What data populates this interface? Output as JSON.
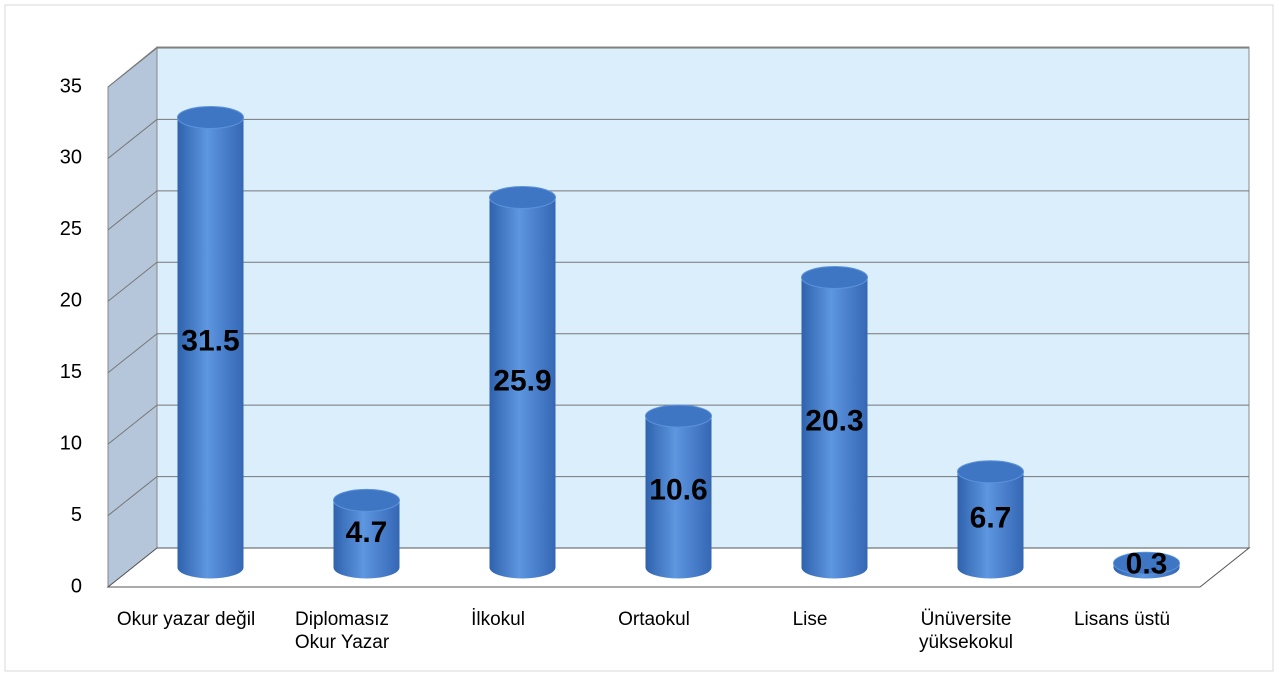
{
  "chart_data": {
    "type": "cylinder",
    "categories": [
      "Okur yazar değil",
      "Diplomasız Okur Yazar",
      "İlkokul",
      "Ortaokul",
      "Lise",
      "Ünüversite yüksekokul",
      "Lisans üstü"
    ],
    "values": [
      31.5,
      4.7,
      25.9,
      10.6,
      20.3,
      6.7,
      0.3
    ],
    "color": "#4a80cc",
    "ylim": [
      0,
      35
    ],
    "yticks": [
      0,
      5,
      10,
      15,
      20,
      25,
      30,
      35
    ],
    "grid": true
  }
}
